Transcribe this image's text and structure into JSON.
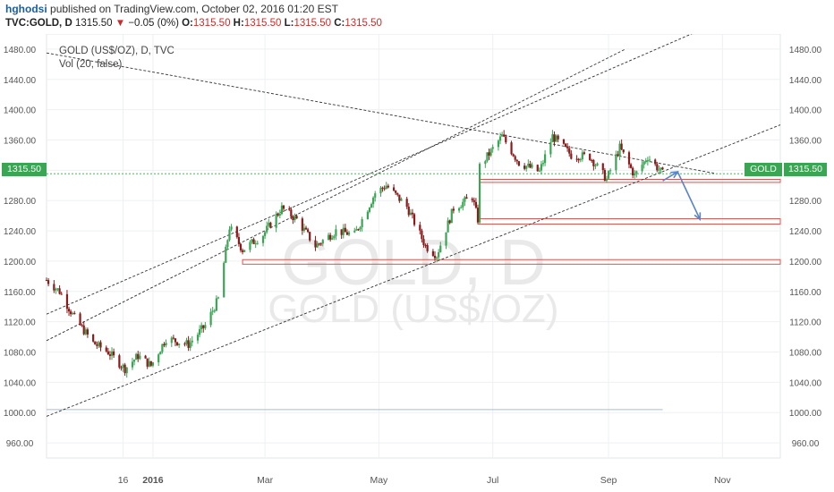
{
  "header": {
    "author": "hghodsi",
    "published_text": "published on TradingView.com, October 02, 2016 01:20 EST",
    "symbol": "TVC:GOLD, D",
    "last": "1315.50",
    "change": "−0.05 (0%)",
    "o_label": "O:",
    "o": "1315.50",
    "h_label": "H:",
    "h": "1315.50",
    "l_label": "L:",
    "l": "1315.50",
    "c_label": "C:",
    "c": "1315.50"
  },
  "legend": {
    "title": "GOLD (US$/OZ), D, TVC",
    "volume": "Vol (20, false)"
  },
  "watermark": {
    "line1": "GOLD, D",
    "line2": "GOLD (US$/OZ)"
  },
  "badges": {
    "price_left": "1315.50",
    "symbol": "GOLD",
    "price_right": "1315.50"
  },
  "colors": {
    "up": "#3aa553",
    "down": "#8b1a1a",
    "support": "#d9534f",
    "arrow": "#5b84c8",
    "grid": "#eef0f3"
  },
  "chart_data": {
    "type": "candlestick",
    "title": "GOLD (US$/OZ), D, TVC",
    "ylim": [
      940,
      1500
    ],
    "y_ticks": [
      960,
      1000,
      1040,
      1080,
      1120,
      1160,
      1200,
      1240,
      1280,
      1320,
      1360,
      1400,
      1440,
      1480
    ],
    "y_tick_labels": [
      "960.00",
      "1000.00",
      "1040.00",
      "1080.00",
      "1120.00",
      "1160.00",
      "1200.00",
      "1240.00",
      "1280.00",
      "1320.00",
      "1360.00",
      "1400.00",
      "1440.00",
      "1480.00"
    ],
    "x_range": [
      "2015-11-05",
      "2016-12-02"
    ],
    "x_ticks": [
      {
        "date": "2015-12-16",
        "label": "16"
      },
      {
        "date": "2016-01-01",
        "label": "2016"
      },
      {
        "date": "2016-03-01",
        "label": "Mar"
      },
      {
        "date": "2016-05-01",
        "label": "May"
      },
      {
        "date": "2016-07-01",
        "label": "Jul"
      },
      {
        "date": "2016-09-01",
        "label": "Sep"
      },
      {
        "date": "2016-11-01",
        "label": "Nov"
      }
    ],
    "price_path": [
      {
        "date": "2015-11-05",
        "close": 1175
      },
      {
        "date": "2015-11-12",
        "close": 1160
      },
      {
        "date": "2015-11-20",
        "close": 1125
      },
      {
        "date": "2015-11-30",
        "close": 1092
      },
      {
        "date": "2015-12-08",
        "close": 1080
      },
      {
        "date": "2015-12-17",
        "close": 1058
      },
      {
        "date": "2015-12-24",
        "close": 1075
      },
      {
        "date": "2015-12-31",
        "close": 1062
      },
      {
        "date": "2016-01-08",
        "close": 1098
      },
      {
        "date": "2016-01-20",
        "close": 1090
      },
      {
        "date": "2016-01-29",
        "close": 1115
      },
      {
        "date": "2016-02-05",
        "close": 1150
      },
      {
        "date": "2016-02-11",
        "close": 1245
      },
      {
        "date": "2016-02-18",
        "close": 1215
      },
      {
        "date": "2016-02-29",
        "close": 1235
      },
      {
        "date": "2016-03-10",
        "close": 1270
      },
      {
        "date": "2016-03-18",
        "close": 1255
      },
      {
        "date": "2016-03-28",
        "close": 1220
      },
      {
        "date": "2016-04-08",
        "close": 1240
      },
      {
        "date": "2016-04-18",
        "close": 1235
      },
      {
        "date": "2016-04-29",
        "close": 1290
      },
      {
        "date": "2016-05-05",
        "close": 1300
      },
      {
        "date": "2016-05-16",
        "close": 1272
      },
      {
        "date": "2016-05-26",
        "close": 1220
      },
      {
        "date": "2016-06-01",
        "close": 1208
      },
      {
        "date": "2016-06-10",
        "close": 1270
      },
      {
        "date": "2016-06-20",
        "close": 1285
      },
      {
        "date": "2016-06-23",
        "close": 1255
      },
      {
        "date": "2016-06-24",
        "close": 1325
      },
      {
        "date": "2016-07-06",
        "close": 1365
      },
      {
        "date": "2016-07-15",
        "close": 1330
      },
      {
        "date": "2016-07-26",
        "close": 1318
      },
      {
        "date": "2016-08-02",
        "close": 1365
      },
      {
        "date": "2016-08-12",
        "close": 1340
      },
      {
        "date": "2016-08-22",
        "close": 1338
      },
      {
        "date": "2016-08-31",
        "close": 1308
      },
      {
        "date": "2016-09-07",
        "close": 1350
      },
      {
        "date": "2016-09-15",
        "close": 1313
      },
      {
        "date": "2016-09-22",
        "close": 1338
      },
      {
        "date": "2016-09-30",
        "close": 1315.5
      }
    ],
    "channel_lines": [
      {
        "from": {
          "date": "2015-11-05",
          "price": 1130
        },
        "to": {
          "date": "2016-10-20",
          "price": 1505
        }
      },
      {
        "from": {
          "date": "2015-11-05",
          "price": 1095
        },
        "to": {
          "date": "2016-09-10",
          "price": 1480
        }
      },
      {
        "from": {
          "date": "2015-11-05",
          "price": 995
        },
        "to": {
          "date": "2016-12-02",
          "price": 1380
        }
      },
      {
        "from": {
          "date": "2015-11-05",
          "price": 1475
        },
        "to": {
          "date": "2016-10-28",
          "price": 1316
        }
      }
    ],
    "support_zones": [
      {
        "from": "2016-06-24",
        "to": "2016-12-02",
        "high": 1308,
        "low": 1304
      },
      {
        "from": "2016-06-23",
        "to": "2016-12-02",
        "high": 1256,
        "low": 1249
      },
      {
        "from": "2016-02-18",
        "to": "2016-12-02",
        "high": 1202,
        "low": 1196
      }
    ],
    "hline": {
      "from": "2015-11-05",
      "to": "2016-09-30",
      "price": 1004
    },
    "arrow_path": [
      {
        "date": "2016-09-30",
        "price": 1306
      },
      {
        "date": "2016-10-08",
        "price": 1318
      },
      {
        "date": "2016-10-20",
        "price": 1255
      }
    ],
    "last_price": 1315.5
  }
}
